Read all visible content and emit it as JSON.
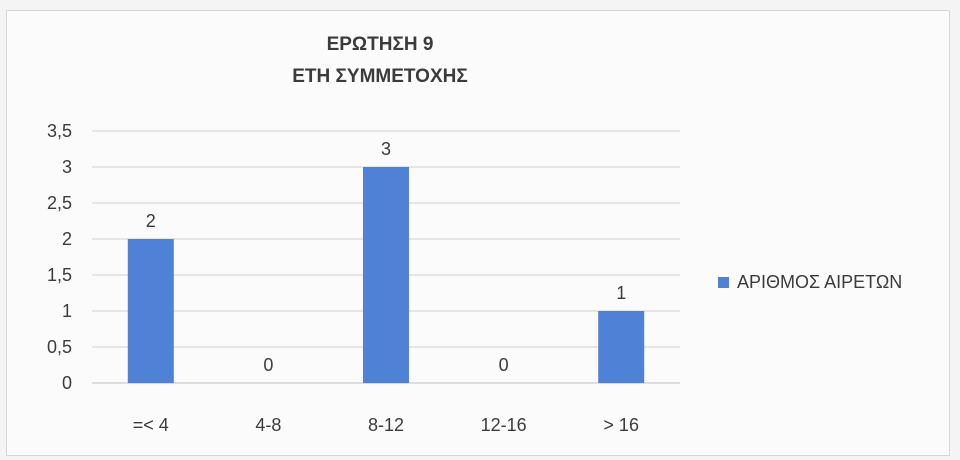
{
  "chart_data": {
    "type": "bar",
    "title_lines": [
      "ΕΡΩΤΗΣΗ 9",
      "ΕΤΗ ΣΥΜΜΕΤΟΧΗΣ"
    ],
    "categories": [
      "=< 4",
      "4-8",
      "8-12",
      "12-16",
      "> 16"
    ],
    "series": [
      {
        "name": "ΑΡΙΘΜΟΣ ΑΙΡΕΤΩΝ",
        "values": [
          2,
          0,
          3,
          0,
          1
        ],
        "color": "#4f81d6"
      }
    ],
    "data_labels": [
      "2",
      "0",
      "3",
      "0",
      "1"
    ],
    "y_ticks": [
      "0",
      "0,5",
      "1",
      "1,5",
      "2",
      "2,5",
      "3",
      "3,5"
    ],
    "ylim": [
      0,
      3.5
    ],
    "grid": true,
    "legend_position": "right",
    "xlabel": "",
    "ylabel": ""
  }
}
